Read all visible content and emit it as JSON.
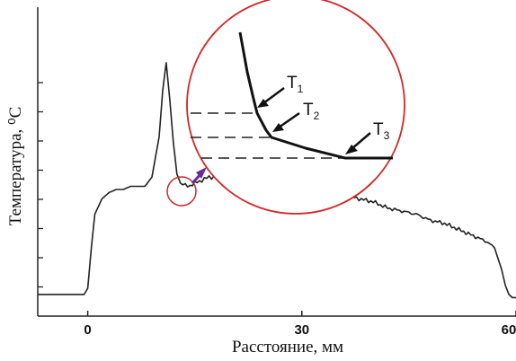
{
  "chart_data": {
    "type": "line",
    "title": "",
    "xlabel": "Расстояние, мм",
    "ylabel": "Температура, ⁰C",
    "xlim": [
      -7,
      60
    ],
    "ylim": [
      0,
      1
    ],
    "x_ticks": [
      0,
      30,
      60
    ],
    "y_ticks_labeled": false,
    "grid": false,
    "legend": "none",
    "line_color": "#222222",
    "series": [
      {
        "values_note_free": true,
        "x": [
          -7,
          -1.5,
          -0.5,
          0,
          0.5,
          1,
          2,
          3,
          4,
          5,
          6,
          7,
          8,
          9,
          10,
          10.5,
          11,
          11.5,
          12,
          12.5,
          13,
          14,
          15,
          16,
          17,
          18,
          20,
          22,
          24,
          26,
          28,
          30,
          32,
          34,
          36,
          38,
          40,
          42,
          44,
          46,
          48,
          50,
          52,
          54,
          56,
          57,
          58,
          58.5,
          59,
          59.5,
          60
        ],
        "y": [
          0.07,
          0.07,
          0.07,
          0.09,
          0.22,
          0.33,
          0.38,
          0.4,
          0.41,
          0.41,
          0.42,
          0.42,
          0.42,
          0.45,
          0.58,
          0.73,
          0.82,
          0.7,
          0.56,
          0.46,
          0.43,
          0.42,
          0.43,
          0.44,
          0.45,
          0.45,
          0.44,
          0.45,
          0.44,
          0.43,
          0.44,
          0.42,
          0.41,
          0.41,
          0.39,
          0.38,
          0.37,
          0.35,
          0.34,
          0.33,
          0.31,
          0.3,
          0.28,
          0.26,
          0.24,
          0.22,
          0.15,
          0.1,
          0.07,
          0.06,
          0.06
        ]
      }
    ]
  },
  "callout": {
    "labels": [
      {
        "main": "T",
        "sub": "1"
      },
      {
        "main": "T",
        "sub": "2"
      },
      {
        "main": "T",
        "sub": "3"
      }
    ],
    "circle_color": "#d0282c",
    "arrow_color": "#6a2a9a"
  }
}
